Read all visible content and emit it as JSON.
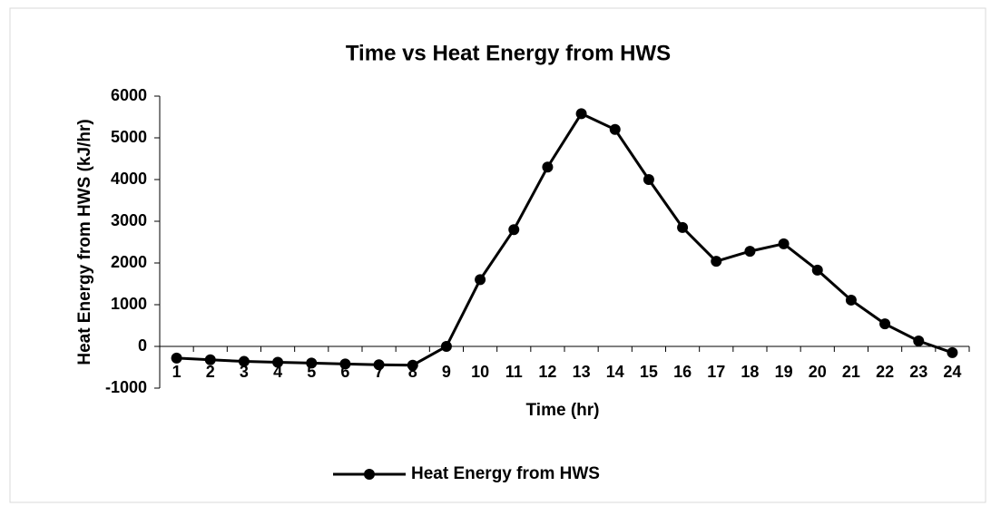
{
  "chart_data": {
    "type": "line",
    "title": "Time vs Heat Energy from HWS",
    "x_label": "Time (hr)",
    "y_label": "Heat Energy from HWS (kJ/hr)",
    "categories": [
      "1",
      "2",
      "3",
      "4",
      "5",
      "6",
      "7",
      "8",
      "9",
      "10",
      "11",
      "12",
      "13",
      "14",
      "15",
      "16",
      "17",
      "18",
      "19",
      "20",
      "21",
      "22",
      "23",
      "24"
    ],
    "series": [
      {
        "name": "Heat Energy from HWS",
        "color": "#000000",
        "values": [
          -280,
          -320,
          -360,
          -380,
          -400,
          -420,
          -440,
          -450,
          0,
          1600,
          2800,
          4300,
          5580,
          5200,
          4000,
          2850,
          2040,
          2280,
          2460,
          1830,
          1110,
          540,
          130,
          -150
        ]
      }
    ],
    "ylim": [
      -1000,
      6000
    ],
    "yticks": [
      -1000,
      0,
      1000,
      2000,
      3000,
      4000,
      5000,
      6000
    ],
    "grid": false,
    "legend": "bottom"
  }
}
